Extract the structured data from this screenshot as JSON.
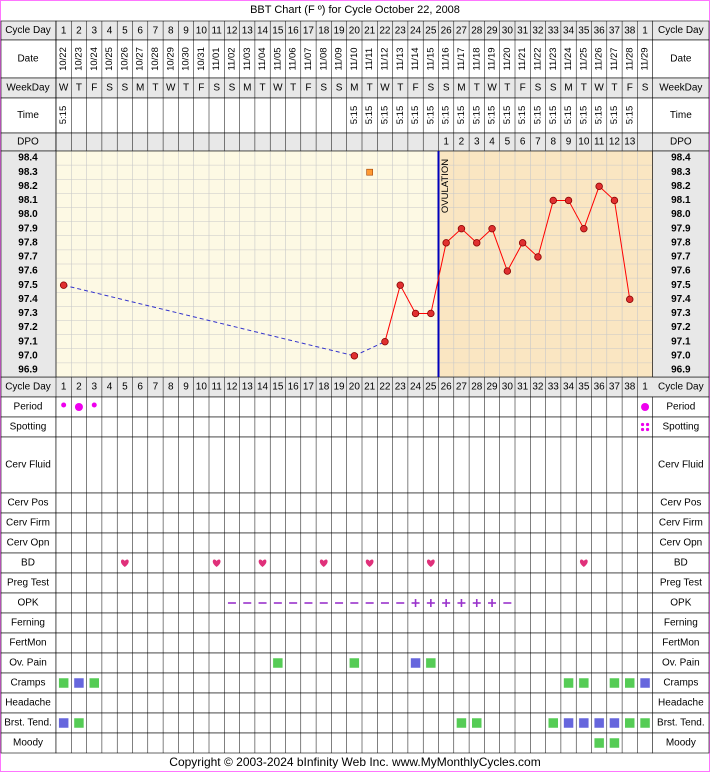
{
  "title": "BBT Chart (F º) for Cycle October 22, 2008",
  "footer": "Copyright © 2003-2024 bInfinity Web Inc.     www.MyMonthlyCycles.com",
  "colors": {
    "border": "#fe75fe",
    "header_bg": "#e8e8e8",
    "pre_bg": "#fdf9e4",
    "post_bg": "#fae6c2",
    "grid": "#c8c8c8",
    "temp_line": "#ff0000",
    "dashed_line": "#3333cc",
    "ovulation": "#0000bb",
    "period": "#ee00ee",
    "heart": "#e0307a",
    "green": "#55cc55",
    "blue": "#6666dd",
    "opk": "#9933cc"
  },
  "labels": {
    "cycle_day": "Cycle Day",
    "date": "Date",
    "weekday": "WeekDay",
    "time": "Time",
    "dpo": "DPO",
    "ovulation": "OVULATION"
  },
  "rows": [
    "Period",
    "Spotting",
    "Cerv Fluid",
    "Cerv Pos",
    "Cerv Firm",
    "Cerv Opn",
    "BD",
    "Preg Test",
    "OPK",
    "Ferning",
    "FertMon",
    "Ov. Pain",
    "Cramps",
    "Headache",
    "Brst. Tend.",
    "Moody"
  ],
  "chart_data": {
    "type": "line",
    "title": "BBT Chart (F º) for Cycle October 22, 2008",
    "cycle_days": [
      1,
      2,
      3,
      4,
      5,
      6,
      7,
      8,
      9,
      10,
      11,
      12,
      13,
      14,
      15,
      16,
      17,
      18,
      19,
      20,
      21,
      22,
      23,
      24,
      25,
      26,
      27,
      28,
      29,
      30,
      31,
      32,
      33,
      34,
      35,
      36,
      37,
      38,
      1
    ],
    "dates": [
      "10/22",
      "10/23",
      "10/24",
      "10/25",
      "10/26",
      "10/27",
      "10/28",
      "10/29",
      "10/30",
      "10/31",
      "11/01",
      "11/02",
      "11/03",
      "11/04",
      "11/05",
      "11/06",
      "11/07",
      "11/08",
      "11/09",
      "11/10",
      "11/11",
      "11/12",
      "11/13",
      "11/14",
      "11/15",
      "11/16",
      "11/17",
      "11/18",
      "11/19",
      "11/20",
      "11/21",
      "11/22",
      "11/23",
      "11/24",
      "11/25",
      "11/26",
      "11/27",
      "11/28",
      "11/29"
    ],
    "weekdays": [
      "W",
      "T",
      "F",
      "S",
      "S",
      "M",
      "T",
      "W",
      "T",
      "F",
      "S",
      "S",
      "M",
      "T",
      "W",
      "T",
      "F",
      "S",
      "S",
      "M",
      "T",
      "W",
      "T",
      "F",
      "S",
      "S",
      "M",
      "T",
      "W",
      "T",
      "F",
      "S",
      "S",
      "M",
      "T",
      "W",
      "T",
      "F",
      "S"
    ],
    "times": [
      "5:15",
      "",
      "",
      "",
      "",
      "",
      "",
      "",
      "",
      "",
      "",
      "",
      "",
      "",
      "",
      "",
      "",
      "",
      "",
      "5:15",
      "5:15",
      "5:15",
      "5:15",
      "5:15",
      "5:15",
      "5:15",
      "5:15",
      "5:15",
      "5:15",
      "5:15",
      "5:15",
      "5:15",
      "5:15",
      "5:15",
      "5:15",
      "5:15",
      "5:15",
      "5:15",
      ""
    ],
    "dpo": [
      "",
      "",
      "",
      "",
      "",
      "",
      "",
      "",
      "",
      "",
      "",
      "",
      "",
      "",
      "",
      "",
      "",
      "",
      "",
      "",
      "",
      "",
      "",
      "",
      "",
      "1",
      "2",
      "3",
      "4",
      "5",
      "6",
      "7",
      "8",
      "9",
      "10",
      "11",
      "12",
      "13",
      ""
    ],
    "y_ticks": [
      "98.4",
      "98.3",
      "98.2",
      "98.1",
      "98.0",
      "97.9",
      "97.8",
      "97.7",
      "97.6",
      "97.5",
      "97.4",
      "97.3",
      "97.2",
      "97.1",
      "97.0",
      "96.9"
    ],
    "ylim": [
      96.9,
      98.4
    ],
    "temps": [
      97.5,
      null,
      null,
      null,
      null,
      null,
      null,
      null,
      null,
      null,
      null,
      null,
      null,
      null,
      null,
      null,
      null,
      null,
      null,
      97.0,
      null,
      97.1,
      97.5,
      97.3,
      97.3,
      97.8,
      97.9,
      97.8,
      97.9,
      97.6,
      97.8,
      97.7,
      98.1,
      98.1,
      97.9,
      98.2,
      98.1,
      97.4,
      null
    ],
    "dashed_segments": [
      [
        1,
        20
      ],
      [
        20,
        22
      ]
    ],
    "solid_segments": [
      [
        22,
        38
      ]
    ],
    "marker_square": {
      "day_index": 21,
      "value": 98.3
    },
    "ovulation_after_index": 25,
    "period": {
      "large": [
        2,
        39
      ],
      "small": [
        1,
        3
      ]
    },
    "spotting": [
      39
    ],
    "bd": [
      5,
      11,
      14,
      18,
      21,
      25,
      35
    ],
    "opk_neg": [
      12,
      13,
      14,
      15,
      16,
      17,
      18,
      19,
      20,
      21,
      22,
      23,
      30
    ],
    "opk_pos": [
      24,
      25,
      26,
      27,
      28,
      29
    ],
    "ov_pain": [
      {
        "i": 15,
        "c": "green"
      },
      {
        "i": 20,
        "c": "green"
      },
      {
        "i": 24,
        "c": "blue"
      },
      {
        "i": 25,
        "c": "green"
      }
    ],
    "cramps": [
      {
        "i": 1,
        "c": "green"
      },
      {
        "i": 2,
        "c": "blue"
      },
      {
        "i": 3,
        "c": "green"
      },
      {
        "i": 34,
        "c": "green"
      },
      {
        "i": 35,
        "c": "green"
      },
      {
        "i": 37,
        "c": "green"
      },
      {
        "i": 38,
        "c": "green"
      },
      {
        "i": 39,
        "c": "blue"
      }
    ],
    "brst_tend": [
      {
        "i": 1,
        "c": "blue"
      },
      {
        "i": 2,
        "c": "green"
      },
      {
        "i": 27,
        "c": "green"
      },
      {
        "i": 28,
        "c": "green"
      },
      {
        "i": 33,
        "c": "green"
      },
      {
        "i": 34,
        "c": "blue"
      },
      {
        "i": 35,
        "c": "blue"
      },
      {
        "i": 36,
        "c": "blue"
      },
      {
        "i": 37,
        "c": "blue"
      },
      {
        "i": 38,
        "c": "green"
      },
      {
        "i": 39,
        "c": "green"
      }
    ],
    "moody": [
      {
        "i": 36,
        "c": "green"
      },
      {
        "i": 37,
        "c": "green"
      }
    ]
  }
}
